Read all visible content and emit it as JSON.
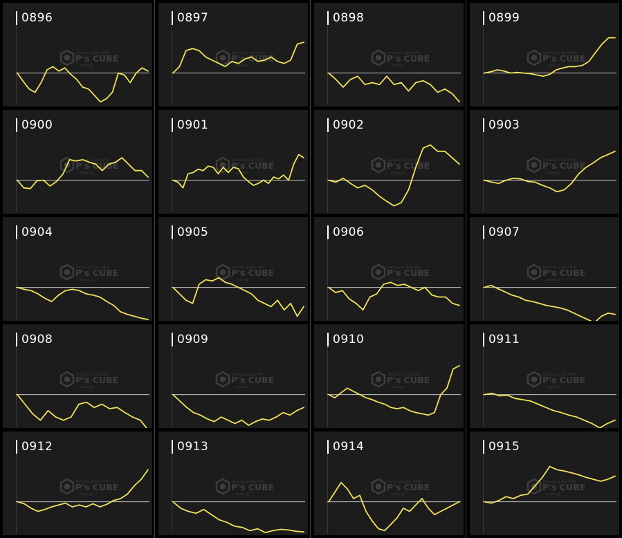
{
  "colors": {
    "line": "#f2e15b",
    "baseline": "#c8c8c8",
    "panel_bg": "#1c1c1c",
    "title": "#ffffff",
    "watermark": "#5a5a5a"
  },
  "watermark": {
    "brand": "P's CUBE",
    "tagline": "Pachinko & Slot DATA",
    "subline": "anaba.jp"
  },
  "chart_data": [
    {
      "type": "line",
      "title": "0896",
      "baseline": 0,
      "ylim": [
        -50,
        75
      ],
      "values": [
        0,
        -13,
        -25,
        -30,
        -15,
        5,
        10,
        3,
        8,
        -2,
        -10,
        -22,
        -25,
        -35,
        -45,
        -40,
        -30,
        0,
        -3,
        -15,
        0,
        8,
        3
      ]
    },
    {
      "type": "line",
      "title": "0897",
      "baseline": 0,
      "ylim": [
        -50,
        75
      ],
      "values": [
        0,
        10,
        35,
        38,
        35,
        25,
        20,
        15,
        10,
        18,
        15,
        22,
        25,
        18,
        20,
        25,
        18,
        15,
        20,
        45,
        48
      ]
    },
    {
      "type": "line",
      "title": "0898",
      "baseline": 0,
      "ylim": [
        -50,
        75
      ],
      "values": [
        0,
        -10,
        -22,
        -10,
        -5,
        -18,
        -15,
        -18,
        -5,
        -18,
        -15,
        -28,
        -15,
        -12,
        -18,
        -30,
        -25,
        -32,
        -45
      ]
    },
    {
      "type": "line",
      "title": "0899",
      "baseline": 0,
      "ylim": [
        -50,
        75
      ],
      "values": [
        0,
        2,
        5,
        3,
        0,
        1,
        0,
        -1,
        -3,
        -5,
        -2,
        5,
        8,
        10,
        10,
        12,
        18,
        32,
        45,
        55,
        55
      ]
    },
    {
      "type": "line",
      "title": "0900",
      "baseline": 0,
      "ylim": [
        -50,
        75
      ],
      "values": [
        0,
        -12,
        -13,
        -1,
        0,
        -9,
        -2,
        10,
        32,
        30,
        32,
        28,
        25,
        15,
        25,
        28,
        35,
        25,
        15,
        15,
        5
      ]
    },
    {
      "type": "line",
      "title": "0901",
      "baseline": 0,
      "ylim": [
        -50,
        75
      ],
      "values": [
        0,
        -3,
        -12,
        10,
        12,
        17,
        15,
        22,
        20,
        10,
        20,
        12,
        20,
        18,
        5,
        -2,
        -8,
        -5,
        0,
        -5,
        5,
        2,
        8,
        0,
        25,
        40,
        35
      ]
    },
    {
      "type": "line",
      "title": "0902",
      "baseline": 0,
      "ylim": [
        -50,
        75
      ],
      "values": [
        0,
        -3,
        3,
        -5,
        -12,
        -8,
        -15,
        -25,
        -33,
        -40,
        -35,
        -15,
        20,
        50,
        55,
        45,
        45,
        35,
        25
      ]
    },
    {
      "type": "line",
      "title": "0903",
      "baseline": 0,
      "ylim": [
        -50,
        75
      ],
      "values": [
        0,
        -3,
        -5,
        0,
        3,
        2,
        -2,
        -3,
        -8,
        -12,
        -18,
        -15,
        -5,
        10,
        20,
        27,
        35,
        40,
        45
      ]
    },
    {
      "type": "line",
      "title": "0904",
      "baseline": 0,
      "ylim": [
        -50,
        75
      ],
      "values": [
        0,
        -3,
        -5,
        -10,
        -17,
        -22,
        -12,
        -5,
        -3,
        -5,
        -10,
        -12,
        -15,
        -22,
        -28,
        -38,
        -42,
        -45,
        -48,
        -50
      ]
    },
    {
      "type": "line",
      "title": "0905",
      "baseline": 0,
      "ylim": [
        -50,
        75
      ],
      "values": [
        0,
        -10,
        -20,
        -25,
        5,
        12,
        10,
        15,
        8,
        5,
        0,
        -5,
        -10,
        -20,
        -25,
        -30,
        -20,
        -35,
        -25,
        -45,
        -30
      ]
    },
    {
      "type": "line",
      "title": "0906",
      "baseline": 0,
      "ylim": [
        -50,
        75
      ],
      "values": [
        0,
        -8,
        -5,
        -18,
        -25,
        -35,
        -15,
        -10,
        5,
        8,
        3,
        5,
        0,
        -5,
        0,
        -12,
        -15,
        -15,
        -25,
        -28
      ]
    },
    {
      "type": "line",
      "title": "0907",
      "baseline": 0,
      "ylim": [
        -50,
        75
      ],
      "values": [
        0,
        3,
        -2,
        -7,
        -12,
        -15,
        -20,
        -22,
        -25,
        -28,
        -30,
        -32,
        -35,
        -40,
        -45,
        -50,
        -55,
        -45,
        -40,
        -42
      ]
    },
    {
      "type": "line",
      "title": "0908",
      "baseline": 0,
      "ylim": [
        -50,
        75
      ],
      "values": [
        0,
        -15,
        -30,
        -40,
        -25,
        -35,
        -40,
        -35,
        -15,
        -12,
        -20,
        -15,
        -22,
        -20,
        -28,
        -35,
        -40,
        -55
      ]
    },
    {
      "type": "line",
      "title": "0909",
      "baseline": 0,
      "ylim": [
        -50,
        75
      ],
      "values": [
        0,
        -10,
        -20,
        -28,
        -32,
        -38,
        -42,
        -35,
        -40,
        -45,
        -40,
        -48,
        -42,
        -38,
        -40,
        -35,
        -28,
        -32,
        -25,
        -20
      ]
    },
    {
      "type": "line",
      "title": "0910",
      "baseline": 0,
      "ylim": [
        -50,
        75
      ],
      "values": [
        0,
        -5,
        3,
        10,
        5,
        0,
        -5,
        -8,
        -12,
        -15,
        -20,
        -22,
        -20,
        -25,
        -28,
        -30,
        -32,
        -28,
        0,
        10,
        40,
        45
      ]
    },
    {
      "type": "line",
      "title": "0911",
      "baseline": 0,
      "ylim": [
        -50,
        75
      ],
      "values": [
        0,
        2,
        -2,
        -1,
        -6,
        -8,
        -10,
        -15,
        -20,
        -25,
        -28,
        -32,
        -35,
        -40,
        -45,
        -52,
        -45,
        -40
      ]
    },
    {
      "type": "line",
      "title": "0912",
      "baseline": 0,
      "ylim": [
        -50,
        75
      ],
      "values": [
        0,
        -3,
        -10,
        -15,
        -12,
        -8,
        -5,
        -2,
        -8,
        -5,
        -8,
        -3,
        -8,
        -4,
        2,
        5,
        12,
        25,
        35,
        50
      ]
    },
    {
      "type": "line",
      "title": "0913",
      "baseline": 0,
      "ylim": [
        -50,
        75
      ],
      "values": [
        0,
        -10,
        -15,
        -18,
        -12,
        -20,
        -28,
        -32,
        -38,
        -40,
        -45,
        -42,
        -48,
        -45,
        -43,
        -44,
        -46,
        -47
      ]
    },
    {
      "type": "line",
      "title": "0914",
      "baseline": 0,
      "ylim": [
        -50,
        75
      ],
      "values": [
        0,
        15,
        30,
        20,
        5,
        10,
        -15,
        -30,
        -42,
        -45,
        -35,
        -25,
        -10,
        -15,
        -5,
        5,
        -10,
        -20,
        -15,
        -10,
        -5,
        0
      ]
    },
    {
      "type": "line",
      "title": "0915",
      "baseline": 0,
      "ylim": [
        -50,
        75
      ],
      "values": [
        0,
        -2,
        2,
        8,
        5,
        10,
        12,
        25,
        38,
        55,
        50,
        48,
        45,
        42,
        38,
        35,
        32,
        35,
        40
      ]
    }
  ]
}
